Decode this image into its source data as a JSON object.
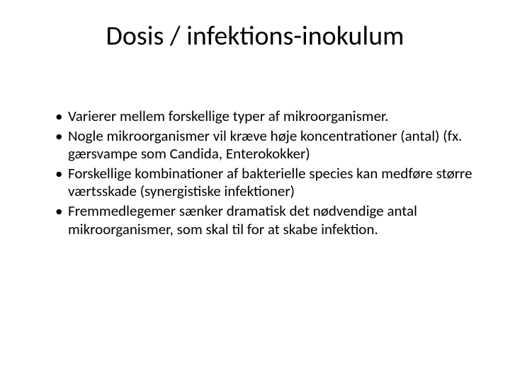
{
  "slide": {
    "title": "Dosis / infektions-inokulum",
    "title_fontsize": 38,
    "title_color": "#000000",
    "body_fontsize": 21,
    "body_color": "#000000",
    "background_color": "#ffffff",
    "bullets": [
      "Varierer mellem forskellige typer af mikroorganismer.",
      "Nogle mikroorganismer vil kræve høje koncentrationer (antal) (fx. gærsvampe som Candida, Enterokokker)",
      "Forskellige kombinationer af bakterielle species kan medføre større værtsskade (synergistiske infektioner)",
      "Fremmedlegemer sænker dramatisk det nødvendige antal mikroorganismer, som skal til for at skabe infektion."
    ]
  }
}
